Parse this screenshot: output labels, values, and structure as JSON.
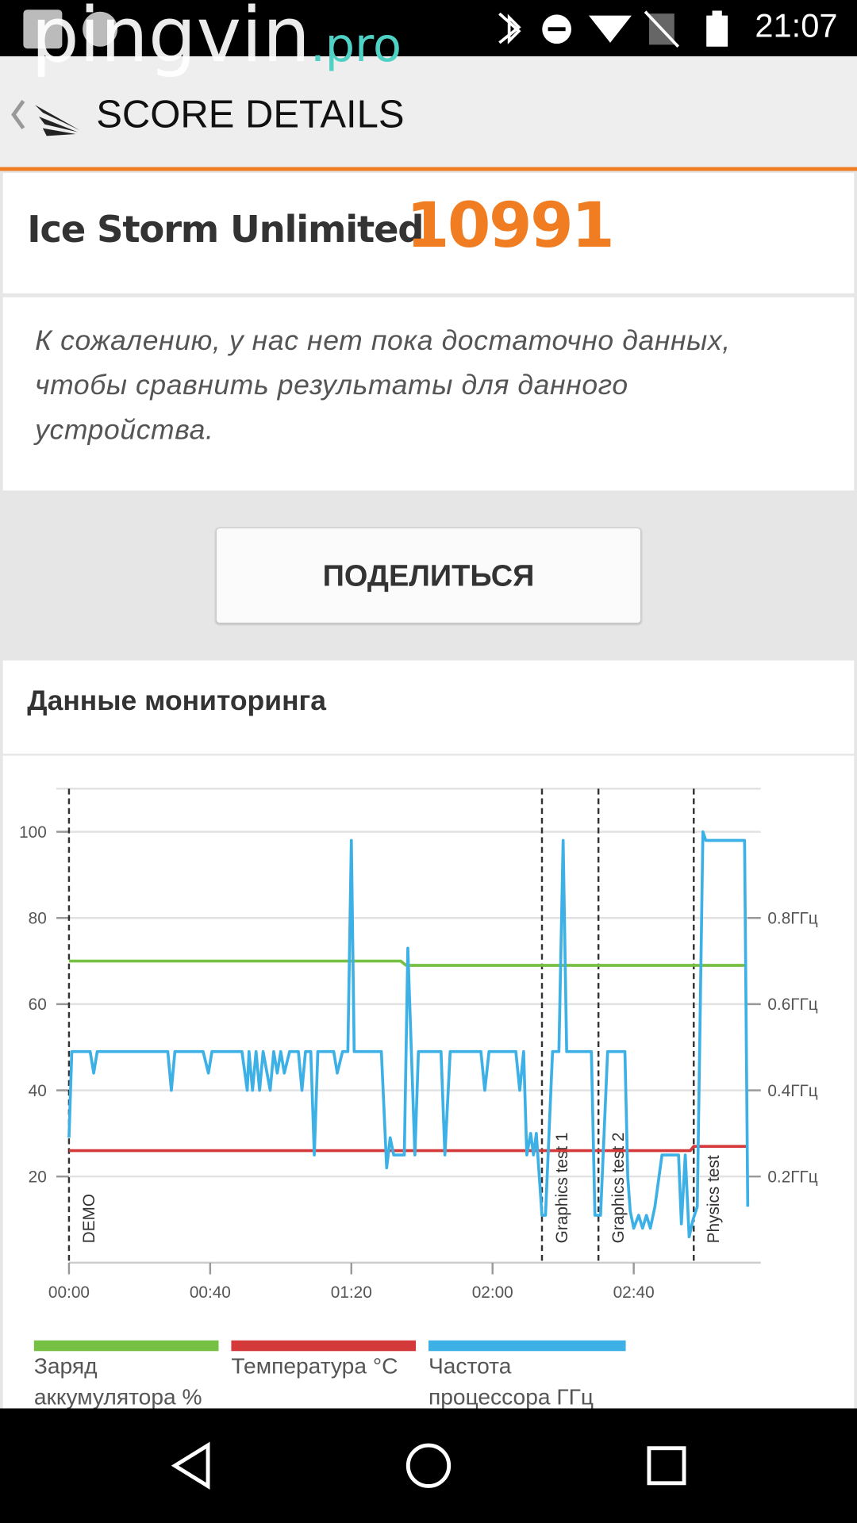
{
  "status_bar": {
    "time": "21:07"
  },
  "watermark": {
    "name": "pingvin",
    "domain": ".pro"
  },
  "header": {
    "title": "SCORE DETAILS"
  },
  "score": {
    "test_name": "Ice Storm Unlimited",
    "value": 10991
  },
  "message": "К сожалению, у нас нет пока достаточно данных, чтобы сравнить результаты для данного устройства.",
  "share_button": "ПОДЕЛИТЬСЯ",
  "monitoring": {
    "title": "Данные мониторинга"
  },
  "chart_data": {
    "type": "line",
    "xlim": [
      0,
      196
    ],
    "xticks": [
      {
        "value": 0,
        "label": "00:00"
      },
      {
        "value": 40,
        "label": "00:40"
      },
      {
        "value": 80,
        "label": "01:20"
      },
      {
        "value": 120,
        "label": "02:00"
      },
      {
        "value": 160,
        "label": "02:40"
      }
    ],
    "ylim": [
      0,
      110
    ],
    "yticks": [
      20,
      40,
      60,
      80,
      100
    ],
    "y2lim": [
      0,
      1.1
    ],
    "y2ticks": [
      {
        "value": 0.2,
        "label": "0.2ГГц"
      },
      {
        "value": 0.4,
        "label": "0.4ГГц"
      },
      {
        "value": 0.6,
        "label": "0.6ГГц"
      },
      {
        "value": 0.8,
        "label": "0.8ГГц"
      }
    ],
    "grid": true,
    "markers": [
      {
        "x": 0,
        "label": "DEMO"
      },
      {
        "x": 134,
        "label": "Graphics test 1"
      },
      {
        "x": 150,
        "label": "Graphics test 2"
      },
      {
        "x": 177,
        "label": "Physics test"
      }
    ],
    "series": [
      {
        "name": "Заряд аккумулятора %",
        "color": "#76c043",
        "axis": "y",
        "x": [
          0,
          94,
          95.5,
          192
        ],
        "values": [
          70,
          70,
          69,
          69
        ]
      },
      {
        "name": "Температура °C",
        "color": "#d43a3a",
        "axis": "y",
        "x": [
          0,
          176,
          177,
          192
        ],
        "values": [
          26,
          26,
          27,
          27
        ]
      },
      {
        "name": "Частота процессора ГГц",
        "color": "#3db1e6",
        "axis": "y2",
        "x": [
          0,
          0.8,
          6,
          7,
          8,
          28,
          29,
          30,
          38,
          39.5,
          40.5,
          49,
          50.5,
          51,
          52,
          53,
          54,
          55,
          57,
          58,
          59,
          60,
          61,
          62.5,
          65,
          66,
          67,
          68.5,
          69.5,
          70.5,
          75,
          76,
          77.5,
          79,
          80,
          80.8,
          88.5,
          90,
          91,
          92,
          95,
          96,
          97,
          98,
          99,
          105.4,
          106.5,
          108,
          116.7,
          117.8,
          119,
          126.6,
          127.7,
          128.8,
          129.7,
          130.8,
          131.6,
          132.4,
          134,
          135,
          137,
          138.8,
          140,
          141,
          148,
          149,
          150.6,
          152.6,
          157.5,
          158.3,
          159,
          160,
          161.4,
          162.5,
          163.6,
          164.7,
          166,
          168,
          172.7,
          173.5,
          174.6,
          175.7,
          176.8,
          178,
          179.6,
          180.4,
          191.4,
          192.3
        ],
        "values": [
          0.29,
          0.49,
          0.49,
          0.44,
          0.49,
          0.49,
          0.4,
          0.49,
          0.49,
          0.44,
          0.49,
          0.49,
          0.4,
          0.49,
          0.4,
          0.49,
          0.4,
          0.49,
          0.4,
          0.49,
          0.44,
          0.49,
          0.44,
          0.49,
          0.49,
          0.4,
          0.49,
          0.49,
          0.25,
          0.49,
          0.49,
          0.44,
          0.49,
          0.49,
          0.98,
          0.49,
          0.49,
          0.22,
          0.29,
          0.25,
          0.25,
          0.73,
          0.49,
          0.25,
          0.49,
          0.49,
          0.25,
          0.49,
          0.49,
          0.4,
          0.49,
          0.49,
          0.4,
          0.49,
          0.25,
          0.3,
          0.25,
          0.3,
          0.11,
          0.11,
          0.49,
          0.49,
          0.98,
          0.49,
          0.49,
          0.11,
          0.11,
          0.49,
          0.49,
          0.2,
          0.12,
          0.08,
          0.11,
          0.08,
          0.11,
          0.08,
          0.13,
          0.25,
          0.25,
          0.09,
          0.25,
          0.06,
          0.1,
          0.13,
          1.0,
          0.98,
          0.98,
          0.13
        ]
      }
    ]
  }
}
